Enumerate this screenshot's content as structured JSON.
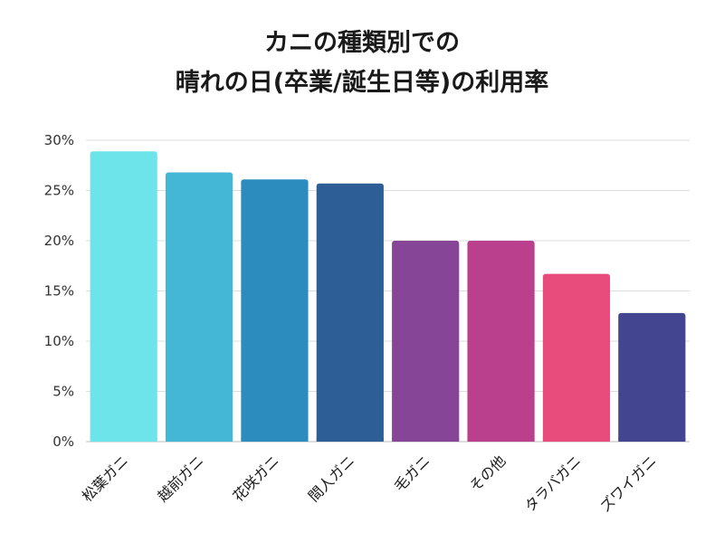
{
  "chart_data": {
    "type": "bar",
    "title_line1": "カニの種類別での",
    "title_line2": "晴れの日(卒業/誕生日等)の利用率",
    "categories": [
      "松葉ガニ",
      "越前ガニ",
      "花咲ガニ",
      "間人ガニ",
      "毛ガニ",
      "その他",
      "タラバガニ",
      "ズワイガニ"
    ],
    "values": [
      28.9,
      26.8,
      26.1,
      25.7,
      20.0,
      20.0,
      16.7,
      12.8
    ],
    "colors": [
      "#6de4ea",
      "#44b6d6",
      "#2c8cbd",
      "#2d5f96",
      "#864597",
      "#ba3f8d",
      "#e84c7d",
      "#434590"
    ],
    "ylim": [
      0,
      30
    ],
    "yticks": [
      "0%",
      "5%",
      "10%",
      "15%",
      "20%",
      "25%",
      "30%"
    ],
    "grid": true,
    "xlabel": "",
    "ylabel": ""
  }
}
